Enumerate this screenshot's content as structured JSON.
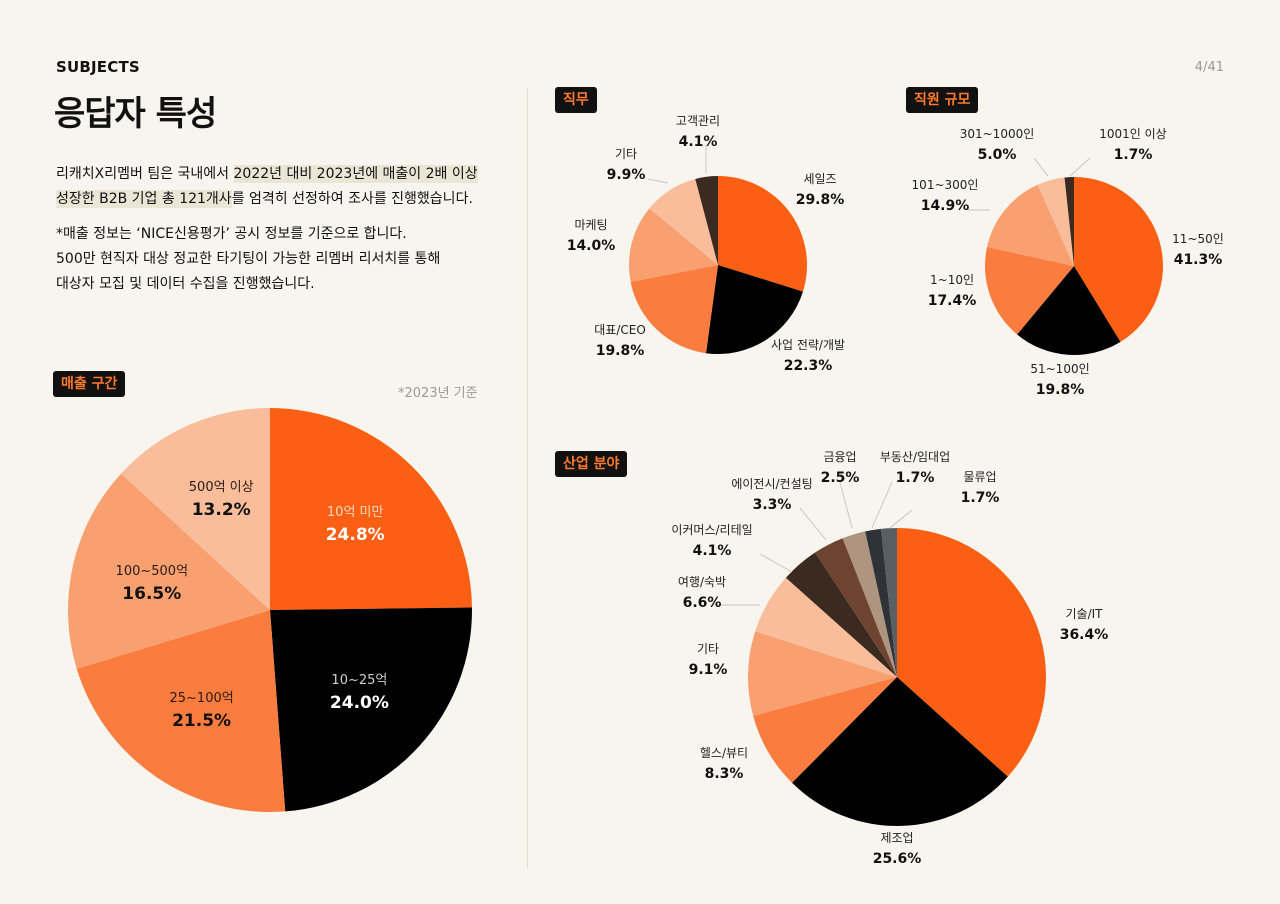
{
  "header": {
    "section": "SUBJECTS",
    "page": "4/41",
    "title": "응답자 특성"
  },
  "intro": {
    "p1_pre": "리캐치X리멤버 팀은 국내에서 ",
    "p1_hl1": "2022년 대비 2023년에 매출이 2배 이상",
    "p1_hl2": "성장한 B2B 기업 총 121개사",
    "p1_post": "를 엄격히 선정하여 조사를 진행했습니다.",
    "p2_line1": "*매출 정보는 ‘NICE신용평가’ 공시 정보를 기준으로 합니다.",
    "p2_line2": "500만 현직자 대상 정교한 타기팅이 가능한 리멤버 리서치를 통해",
    "p2_line3": "대상자 모집 및 데이터 수집을 진행했습니다."
  },
  "revenue_note": "*2023년 기준",
  "chart_data": [
    {
      "type": "pie",
      "title": "매출 구간",
      "labels": [
        "10억 미만",
        "10~25억",
        "25~100억",
        "100~500억",
        "500억 이상"
      ],
      "values": [
        24.8,
        24.0,
        21.5,
        16.5,
        13.2
      ],
      "value_labels": [
        "24.8%",
        "24.0%",
        "21.5%",
        "16.5%",
        "13.2%"
      ],
      "colors": [
        "#fa5f13",
        "#000000",
        "#fa7c3f",
        "#f9a070",
        "#f9bd9b"
      ],
      "label_colors": [
        "#ffd8c2",
        "#cfcfcf",
        "#2a1a10",
        "#2a1a10",
        "#2a1a10"
      ],
      "value_colors": [
        "#ffffff",
        "#ffffff",
        "#111111",
        "#111111",
        "#111111"
      ]
    },
    {
      "type": "pie",
      "title": "직무",
      "labels": [
        "세일즈",
        "사업 전략/개발",
        "대표/CEO",
        "마케팅",
        "기타",
        "고객관리"
      ],
      "values": [
        29.8,
        22.3,
        19.8,
        14.0,
        9.9,
        4.1
      ],
      "value_labels": [
        "29.8%",
        "22.3%",
        "19.8%",
        "14.0%",
        "9.9%",
        "4.1%"
      ],
      "colors": [
        "#fa5f13",
        "#000000",
        "#fa7c3f",
        "#f9a070",
        "#f9bd9b",
        "#3b2a20"
      ]
    },
    {
      "type": "pie",
      "title": "직원 규모",
      "labels": [
        "11~50인",
        "51~100인",
        "1~10인",
        "101~300인",
        "301~1000인",
        "1001인 이상"
      ],
      "values": [
        41.3,
        19.8,
        17.4,
        14.9,
        5.0,
        1.7
      ],
      "value_labels": [
        "41.3%",
        "19.8%",
        "17.4%",
        "14.9%",
        "5.0%",
        "1.7%"
      ],
      "colors": [
        "#fa5f13",
        "#000000",
        "#fa7c3f",
        "#f9a070",
        "#f9bd9b",
        "#3b2a20"
      ]
    },
    {
      "type": "pie",
      "title": "산업 분야",
      "labels": [
        "기술/IT",
        "제조업",
        "헬스/뷰티",
        "기타",
        "여행/숙박",
        "이커머스/리테일",
        "에이전시/컨설팅",
        "금융업",
        "부동산/임대업",
        "물류업"
      ],
      "values": [
        36.4,
        25.6,
        8.3,
        9.1,
        6.6,
        4.1,
        3.3,
        2.5,
        1.7,
        1.7
      ],
      "value_labels": [
        "36.4%",
        "25.6%",
        "8.3%",
        "9.1%",
        "6.6%",
        "4.1%",
        "3.3%",
        "2.5%",
        "1.7%",
        "1.7%"
      ],
      "colors": [
        "#fa5f13",
        "#000000",
        "#fa7c3f",
        "#f9a070",
        "#f9bd9b",
        "#3b2a20",
        "#6e4430",
        "#ad9580",
        "#2f3338",
        "#5a5f66"
      ]
    }
  ]
}
